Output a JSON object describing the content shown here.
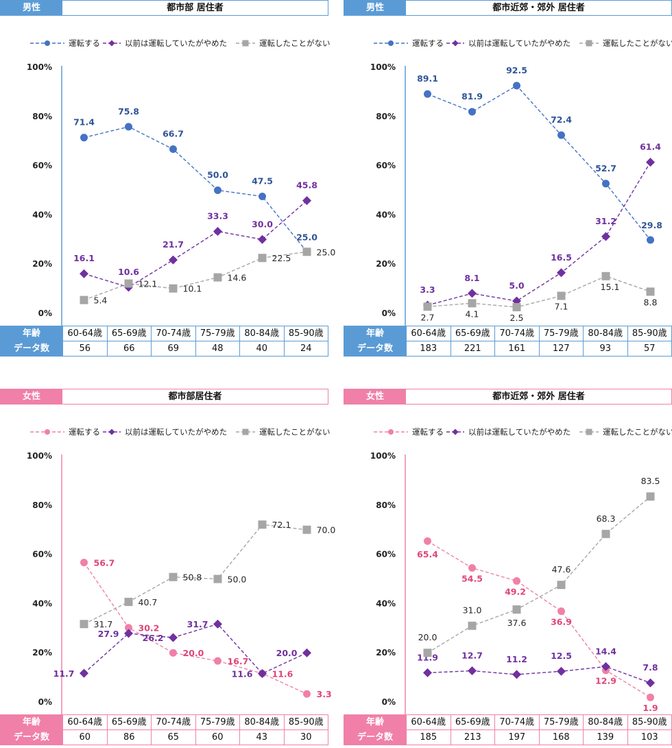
{
  "panels": [
    {
      "gender": "男性",
      "title": "都市部 居住者",
      "accent": "#5b9bd5",
      "row_labels": [
        "年齢",
        "データ数"
      ],
      "ages": [
        "60-64歳",
        "65-69歳",
        "70-74歳",
        "75-79歳",
        "80-84歳",
        "85-90歳"
      ],
      "counts": [
        "56",
        "66",
        "69",
        "48",
        "40",
        "24"
      ]
    },
    {
      "gender": "男性",
      "title": "都市近郊・郊外 居住者",
      "accent": "#5b9bd5",
      "row_labels": [
        "年齢",
        "データ数"
      ],
      "ages": [
        "60-64歳",
        "65-69歳",
        "70-74歳",
        "75-79歳",
        "80-84歳",
        "85-90歳"
      ],
      "counts": [
        "183",
        "221",
        "161",
        "127",
        "93",
        "57"
      ]
    },
    {
      "gender": "女性",
      "title": "都市部居住者",
      "accent": "#f080a8",
      "row_labels": [
        "年齢",
        "データ数"
      ],
      "ages": [
        "60-64歳",
        "65-69歳",
        "70-74歳",
        "75-79歳",
        "80-84歳",
        "85-90歳"
      ],
      "counts": [
        "60",
        "86",
        "65",
        "60",
        "43",
        "30"
      ]
    },
    {
      "gender": "女性",
      "title": "都市近郊・郊外 居住者",
      "accent": "#f080a8",
      "row_labels": [
        "年齢",
        "データ数"
      ],
      "ages": [
        "60-64歳",
        "65-69歳",
        "70-74歳",
        "75-79歳",
        "80-84歳",
        "85-90歳"
      ],
      "counts": [
        "185",
        "213",
        "197",
        "168",
        "139",
        "103"
      ]
    }
  ],
  "chart_data": [
    {
      "type": "line",
      "categories": [
        "60-64歳",
        "65-69歳",
        "70-74歳",
        "75-79歳",
        "80-84歳",
        "85-90歳"
      ],
      "ylim": [
        0,
        100
      ],
      "yticks": [
        "0%",
        "20%",
        "40%",
        "60%",
        "80%",
        "100%"
      ],
      "legend_position": "top",
      "series": [
        {
          "name": "運転する",
          "values": [
            71.4,
            75.8,
            66.7,
            50.0,
            47.5,
            25.0
          ],
          "color": "#4472c4",
          "label_color": "#2f5597",
          "marker": "circle"
        },
        {
          "name": "以前は運転していたがやめた",
          "values": [
            16.1,
            10.6,
            21.7,
            33.3,
            30.0,
            45.8
          ],
          "color": "#7030a0",
          "label_color": "#7030a0",
          "marker": "diamond"
        },
        {
          "name": "運転したことがない",
          "values": [
            5.4,
            12.1,
            10.1,
            14.6,
            22.5,
            25.0
          ],
          "color": "#a6a6a6",
          "label_color": "#262626",
          "marker": "square"
        }
      ]
    },
    {
      "type": "line",
      "categories": [
        "60-64歳",
        "65-69歳",
        "70-74歳",
        "75-79歳",
        "80-84歳",
        "85-90歳"
      ],
      "ylim": [
        0,
        100
      ],
      "yticks": [
        "0%",
        "20%",
        "40%",
        "60%",
        "80%",
        "100%"
      ],
      "legend_position": "top",
      "series": [
        {
          "name": "運転する",
          "values": [
            89.1,
            81.9,
            92.5,
            72.4,
            52.7,
            29.8
          ],
          "color": "#4472c4",
          "label_color": "#2f5597",
          "marker": "circle"
        },
        {
          "name": "以前は運転していたがやめた",
          "values": [
            3.3,
            8.1,
            5.0,
            16.5,
            31.2,
            61.4
          ],
          "color": "#7030a0",
          "label_color": "#7030a0",
          "marker": "diamond"
        },
        {
          "name": "運転したことがない",
          "values": [
            2.7,
            4.1,
            2.5,
            7.1,
            15.1,
            8.8
          ],
          "color": "#a6a6a6",
          "label_color": "#262626",
          "marker": "square"
        }
      ]
    },
    {
      "type": "line",
      "categories": [
        "60-64歳",
        "65-69歳",
        "70-74歳",
        "75-79歳",
        "80-84歳",
        "85-90歳"
      ],
      "ylim": [
        0,
        100
      ],
      "yticks": [
        "0%",
        "20%",
        "40%",
        "60%",
        "80%",
        "100%"
      ],
      "legend_position": "top",
      "series": [
        {
          "name": "運転する",
          "values": [
            56.7,
            30.2,
            20.0,
            16.7,
            11.6,
            3.3
          ],
          "color": "#f080a8",
          "label_color": "#e0457a",
          "marker": "circle"
        },
        {
          "name": "以前は運転していたがやめた",
          "values": [
            11.7,
            27.9,
            26.2,
            31.7,
            11.6,
            20.0
          ],
          "color": "#7030a0",
          "label_color": "#7030a0",
          "marker": "diamond"
        },
        {
          "name": "運転したことがない",
          "values": [
            31.7,
            40.7,
            50.8,
            50.0,
            72.1,
            70.0
          ],
          "color": "#a6a6a6",
          "label_color": "#262626",
          "marker": "square"
        }
      ]
    },
    {
      "type": "line",
      "categories": [
        "60-64歳",
        "65-69歳",
        "70-74歳",
        "75-79歳",
        "80-84歳",
        "85-90歳"
      ],
      "ylim": [
        0,
        100
      ],
      "yticks": [
        "0%",
        "20%",
        "40%",
        "60%",
        "80%",
        "100%"
      ],
      "legend_position": "top",
      "series": [
        {
          "name": "運転する",
          "values": [
            65.4,
            54.5,
            49.2,
            36.9,
            12.9,
            1.9
          ],
          "color": "#f080a8",
          "label_color": "#e0457a",
          "marker": "circle"
        },
        {
          "name": "以前は運転していたがやめた",
          "values": [
            11.9,
            12.7,
            11.2,
            12.5,
            14.4,
            7.8
          ],
          "color": "#7030a0",
          "label_color": "#7030a0",
          "marker": "diamond"
        },
        {
          "name": "運転したことがない",
          "values": [
            20.0,
            31.0,
            37.6,
            47.6,
            68.3,
            83.5
          ],
          "color": "#a6a6a6",
          "label_color": "#262626",
          "marker": "square"
        }
      ]
    }
  ]
}
